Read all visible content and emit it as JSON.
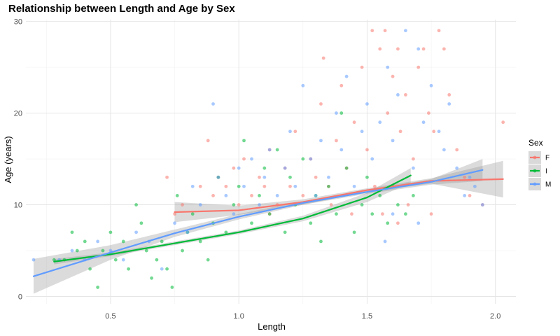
{
  "chart_data": {
    "type": "scatter",
    "title": "Relationship between Length and Age by Sex",
    "xlabel": "Length",
    "ylabel": "Age (years)",
    "xlim": [
      0.17,
      2.08
    ],
    "ylim": [
      -0.8,
      30.2
    ],
    "x_ticks": [
      {
        "value": 0.5,
        "label": "0.5"
      },
      {
        "value": 1.0,
        "label": "1.0"
      },
      {
        "value": 1.5,
        "label": "1.5"
      },
      {
        "value": 2.0,
        "label": "2.0"
      }
    ],
    "y_ticks": [
      {
        "value": 0,
        "label": "0"
      },
      {
        "value": 10,
        "label": "10"
      },
      {
        "value": 20,
        "label": "20"
      },
      {
        "value": 30,
        "label": "30"
      }
    ],
    "grid": true,
    "legend": {
      "title": "Sex",
      "placement": "right"
    },
    "series": [
      {
        "name": "F",
        "color": "#F8766D",
        "points": [
          [
            0.75,
            9
          ],
          [
            0.78,
            10
          ],
          [
            0.72,
            13
          ],
          [
            0.85,
            12
          ],
          [
            0.88,
            17
          ],
          [
            0.9,
            11
          ],
          [
            0.92,
            13
          ],
          [
            0.95,
            12
          ],
          [
            0.98,
            14
          ],
          [
            1.0,
            10
          ],
          [
            1.02,
            15
          ],
          [
            1.05,
            11
          ],
          [
            1.08,
            13
          ],
          [
            1.1,
            12
          ],
          [
            1.12,
            16
          ],
          [
            1.15,
            10
          ],
          [
            1.18,
            14
          ],
          [
            1.2,
            12
          ],
          [
            1.22,
            18
          ],
          [
            1.25,
            11
          ],
          [
            1.28,
            15
          ],
          [
            1.3,
            13
          ],
          [
            1.32,
            21
          ],
          [
            1.33,
            26
          ],
          [
            1.35,
            12
          ],
          [
            1.38,
            17
          ],
          [
            1.4,
            23
          ],
          [
            1.42,
            14
          ],
          [
            1.45,
            19
          ],
          [
            1.48,
            25
          ],
          [
            1.5,
            16
          ],
          [
            1.52,
            29
          ],
          [
            1.53,
            12
          ],
          [
            1.55,
            27
          ],
          [
            1.57,
            29
          ],
          [
            1.58,
            20
          ],
          [
            1.6,
            24
          ],
          [
            1.62,
            27
          ],
          [
            1.63,
            18
          ],
          [
            1.65,
            22
          ],
          [
            1.68,
            15
          ],
          [
            1.7,
            25
          ],
          [
            1.72,
            27
          ],
          [
            1.74,
            20
          ],
          [
            1.76,
            18
          ],
          [
            1.78,
            29
          ],
          [
            1.8,
            27
          ],
          [
            1.82,
            22
          ],
          [
            1.85,
            16
          ],
          [
            1.88,
            13
          ],
          [
            1.9,
            11
          ],
          [
            1.95,
            10
          ],
          [
            2.03,
            19
          ],
          [
            1.36,
            10
          ],
          [
            1.44,
            9
          ],
          [
            1.56,
            9
          ],
          [
            1.66,
            10
          ],
          [
            1.75,
            9
          ],
          [
            1.62,
            8
          ],
          [
            1.12,
            9
          ]
        ]
      },
      {
        "name": "I",
        "color": "#00BA38",
        "points": [
          [
            0.28,
            4
          ],
          [
            0.32,
            4
          ],
          [
            0.35,
            7
          ],
          [
            0.37,
            5
          ],
          [
            0.4,
            6
          ],
          [
            0.42,
            3
          ],
          [
            0.45,
            1
          ],
          [
            0.47,
            5
          ],
          [
            0.5,
            7
          ],
          [
            0.52,
            4
          ],
          [
            0.55,
            6
          ],
          [
            0.57,
            3
          ],
          [
            0.6,
            10
          ],
          [
            0.62,
            8
          ],
          [
            0.64,
            5
          ],
          [
            0.66,
            2
          ],
          [
            0.68,
            4
          ],
          [
            0.7,
            6
          ],
          [
            0.72,
            3
          ],
          [
            0.74,
            1
          ],
          [
            0.76,
            11
          ],
          [
            0.78,
            5
          ],
          [
            0.8,
            7
          ],
          [
            0.82,
            9
          ],
          [
            0.85,
            6
          ],
          [
            0.88,
            4
          ],
          [
            0.9,
            8
          ],
          [
            0.92,
            13
          ],
          [
            0.95,
            7
          ],
          [
            0.98,
            10
          ],
          [
            1.0,
            12
          ],
          [
            1.02,
            17
          ],
          [
            1.05,
            8
          ],
          [
            1.08,
            11
          ],
          [
            1.1,
            14
          ],
          [
            1.12,
            9
          ],
          [
            1.15,
            16
          ],
          [
            1.18,
            7
          ],
          [
            1.2,
            13
          ],
          [
            1.22,
            10
          ],
          [
            1.25,
            15
          ],
          [
            1.28,
            8
          ],
          [
            1.3,
            11
          ],
          [
            1.32,
            6
          ],
          [
            1.35,
            12
          ],
          [
            1.38,
            9
          ],
          [
            1.4,
            20
          ],
          [
            1.42,
            14
          ],
          [
            1.45,
            7
          ],
          [
            1.48,
            10
          ],
          [
            1.5,
            13
          ],
          [
            1.52,
            9
          ],
          [
            1.55,
            11
          ],
          [
            1.58,
            8
          ],
          [
            1.6,
            12
          ],
          [
            1.62,
            10
          ],
          [
            1.65,
            9
          ],
          [
            1.68,
            11
          ]
        ]
      },
      {
        "name": "M",
        "color": "#619CFF",
        "points": [
          [
            0.2,
            4
          ],
          [
            0.3,
            4
          ],
          [
            0.35,
            5
          ],
          [
            0.4,
            4
          ],
          [
            0.45,
            6
          ],
          [
            0.5,
            5
          ],
          [
            0.55,
            4
          ],
          [
            0.6,
            7
          ],
          [
            0.65,
            6
          ],
          [
            0.7,
            3
          ],
          [
            0.75,
            8
          ],
          [
            0.8,
            7
          ],
          [
            0.82,
            12
          ],
          [
            0.85,
            10
          ],
          [
            0.9,
            21
          ],
          [
            0.92,
            13
          ],
          [
            0.95,
            11
          ],
          [
            0.98,
            9
          ],
          [
            1.0,
            14
          ],
          [
            1.02,
            12
          ],
          [
            1.05,
            15
          ],
          [
            1.08,
            10
          ],
          [
            1.1,
            13
          ],
          [
            1.12,
            16
          ],
          [
            1.15,
            11
          ],
          [
            1.18,
            14
          ],
          [
            1.2,
            18
          ],
          [
            1.22,
            12
          ],
          [
            1.25,
            23
          ],
          [
            1.28,
            15
          ],
          [
            1.3,
            11
          ],
          [
            1.32,
            17
          ],
          [
            1.35,
            13
          ],
          [
            1.38,
            20
          ],
          [
            1.4,
            16
          ],
          [
            1.42,
            24
          ],
          [
            1.45,
            12
          ],
          [
            1.48,
            18
          ],
          [
            1.5,
            21
          ],
          [
            1.52,
            15
          ],
          [
            1.55,
            19
          ],
          [
            1.57,
            6
          ],
          [
            1.58,
            25
          ],
          [
            1.6,
            17
          ],
          [
            1.62,
            22
          ],
          [
            1.65,
            29
          ],
          [
            1.68,
            14
          ],
          [
            1.7,
            27
          ],
          [
            1.72,
            19
          ],
          [
            1.75,
            23
          ],
          [
            1.78,
            18
          ],
          [
            1.8,
            16
          ],
          [
            1.82,
            21
          ],
          [
            1.85,
            14
          ],
          [
            1.88,
            11
          ],
          [
            1.9,
            13
          ],
          [
            1.92,
            12
          ],
          [
            1.95,
            10
          ],
          [
            1.6,
            9
          ],
          [
            1.7,
            8
          ]
        ]
      }
    ],
    "trend_lines": [
      {
        "name": "F",
        "color": "#F8766D",
        "x": [
          0.75,
          1.0,
          1.25,
          1.5,
          1.75,
          2.03
        ],
        "y": [
          9.2,
          9.4,
          10.3,
          11.6,
          12.6,
          12.8
        ],
        "ci_upper": [
          10.3,
          9.9,
          10.6,
          11.8,
          12.9,
          14.8
        ],
        "ci_lower": [
          8.1,
          8.9,
          10.0,
          11.4,
          12.3,
          10.8
        ]
      },
      {
        "name": "I",
        "color": "#00BA38",
        "x": [
          0.28,
          0.5,
          0.75,
          1.0,
          1.25,
          1.5,
          1.67
        ],
        "y": [
          3.8,
          4.6,
          5.8,
          7.0,
          8.5,
          10.8,
          13.2
        ],
        "ci_upper": [
          4.1,
          4.8,
          6.0,
          7.2,
          8.8,
          11.3,
          14.0
        ],
        "ci_lower": [
          3.5,
          4.4,
          5.6,
          6.8,
          8.2,
          10.3,
          12.4
        ]
      },
      {
        "name": "M",
        "color": "#619CFF",
        "x": [
          0.2,
          0.5,
          0.75,
          1.0,
          1.25,
          1.5,
          1.75,
          1.95
        ],
        "y": [
          2.2,
          4.8,
          6.9,
          8.7,
          10.2,
          11.4,
          12.5,
          13.8
        ],
        "ci_upper": [
          4.1,
          5.6,
          7.3,
          9.0,
          10.4,
          11.6,
          12.8,
          15.0
        ],
        "ci_lower": [
          0.3,
          4.0,
          6.5,
          8.4,
          10.0,
          11.2,
          12.2,
          12.6
        ]
      }
    ]
  }
}
